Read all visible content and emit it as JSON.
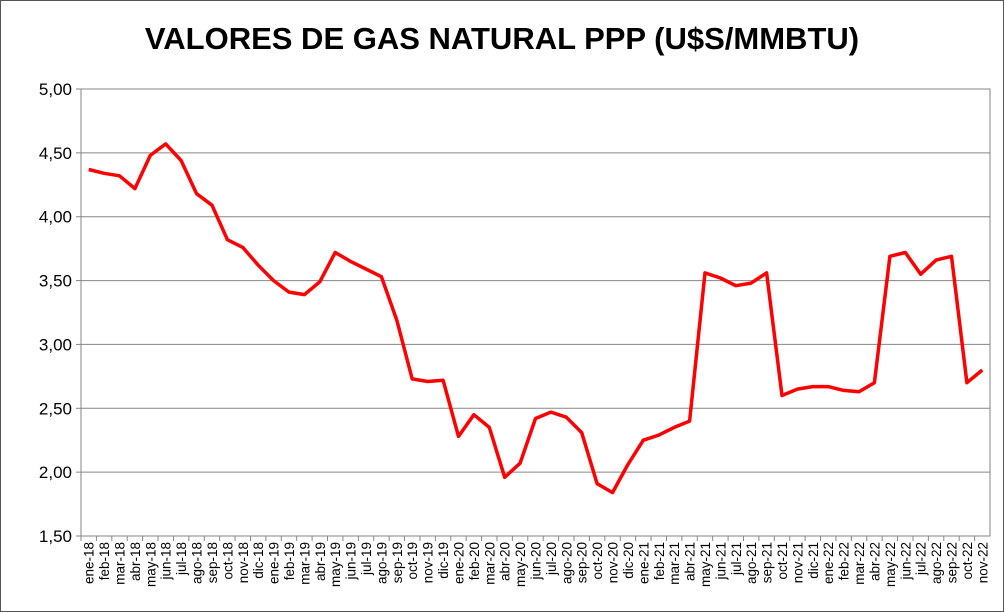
{
  "chart_data": {
    "type": "line",
    "title": "VALORES DE GAS NATURAL PPP (U$S/MMBTU)",
    "xlabel": "",
    "ylabel": "",
    "ylim": [
      1.5,
      5.0
    ],
    "yticks": [
      "1,50",
      "2,00",
      "2,50",
      "3,00",
      "3,50",
      "4,00",
      "4,50",
      "5,00"
    ],
    "grid": true,
    "legend": "none",
    "categories": [
      "ene-18",
      "feb-18",
      "mar-18",
      "abr-18",
      "may-18",
      "jun-18",
      "jul-18",
      "ago-18",
      "sep-18",
      "oct-18",
      "nov-18",
      "dic-18",
      "ene-19",
      "feb-19",
      "mar-19",
      "abr-19",
      "may-19",
      "jun-19",
      "jul-19",
      "ago-19",
      "sep-19",
      "oct-19",
      "nov-19",
      "dic-19",
      "ene-20",
      "feb-20",
      "mar-20",
      "abr-20",
      "may-20",
      "jun-20",
      "jul-20",
      "ago-20",
      "sep-20",
      "oct-20",
      "nov-20",
      "dic-20",
      "ene-21",
      "feb-21",
      "mar-21",
      "abr-21",
      "may-21",
      "jun-21",
      "jul-21",
      "ago-21",
      "sep-21",
      "oct-21",
      "nov-21",
      "dic-21",
      "ene-22",
      "feb-22",
      "mar-22",
      "abr-22",
      "may-22",
      "jun-22",
      "jul-22",
      "ago-22",
      "sep-22",
      "oct-22",
      "nov-22"
    ],
    "series": [
      {
        "name": "Gas natural PPP",
        "color": "#ff0000",
        "values": [
          4.37,
          4.34,
          4.32,
          4.22,
          4.48,
          4.57,
          4.44,
          4.18,
          4.09,
          3.82,
          3.76,
          3.62,
          3.5,
          3.41,
          3.39,
          3.49,
          3.72,
          3.65,
          3.59,
          3.53,
          3.19,
          2.73,
          2.71,
          2.72,
          2.28,
          2.45,
          2.35,
          1.96,
          2.07,
          2.42,
          2.47,
          2.43,
          2.31,
          1.91,
          1.84,
          2.06,
          2.25,
          2.29,
          2.35,
          2.4,
          3.56,
          3.52,
          3.46,
          3.48,
          3.56,
          2.6,
          2.65,
          2.67,
          2.67,
          2.64,
          2.63,
          2.7,
          3.69,
          3.72,
          3.55,
          3.66,
          3.69,
          2.7,
          2.8
        ]
      }
    ]
  }
}
